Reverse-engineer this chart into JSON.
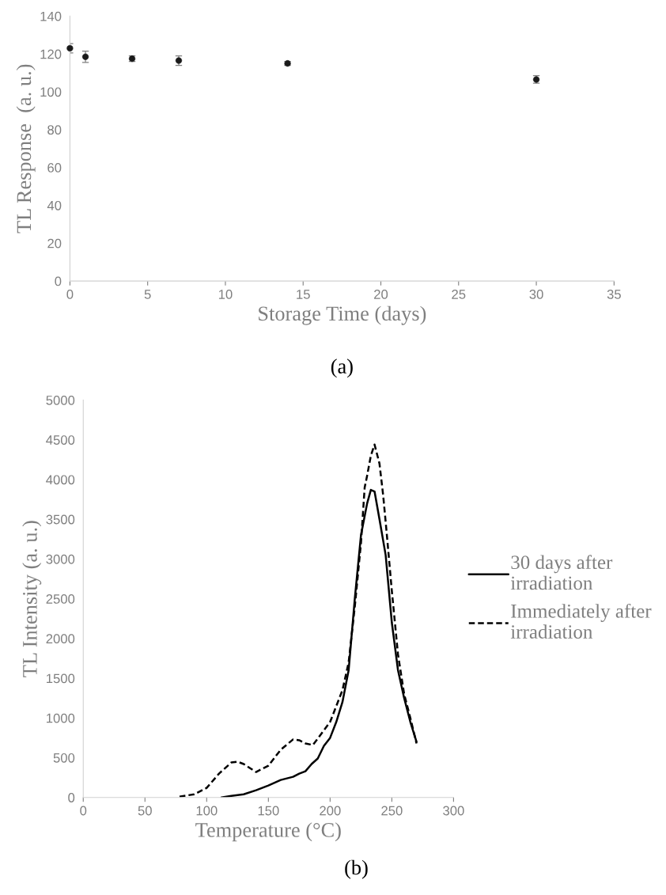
{
  "chart_data": [
    {
      "type": "scatter",
      "xlabel": "Storage Time (days)",
      "ylabel": "TL Response  (a. u.)",
      "annotations": [
        "(a)"
      ],
      "x": [
        0,
        1,
        4,
        7,
        14,
        30
      ],
      "series": [
        {
          "color": "#1a1a1a",
          "values": [
            123,
            118.5,
            117.5,
            116.5,
            115,
            106.5
          ],
          "errors": [
            2.5,
            3,
            1.5,
            2.5,
            1,
            2
          ]
        }
      ],
      "marker": "circle",
      "xlim": [
        0,
        35
      ],
      "xticks": [
        0,
        5,
        10,
        15,
        20,
        25,
        30,
        35
      ],
      "ylim": [
        0,
        140
      ],
      "yticks": [
        0,
        20,
        40,
        60,
        80,
        100,
        120,
        140
      ],
      "grid": false
    },
    {
      "type": "line",
      "xlabel": "Temperature (°C)",
      "ylabel": "TL Intensity (a. u.)",
      "annotations": [
        "(b)"
      ],
      "series": [
        {
          "name": "30 days after irradiation",
          "color": "#000000",
          "line_style": "solid",
          "x": [
            112,
            120,
            130,
            140,
            150,
            160,
            170,
            175,
            180,
            185,
            190,
            195,
            200,
            205,
            210,
            215,
            220,
            225,
            230,
            233,
            236,
            240,
            245,
            250,
            255,
            260,
            265,
            270
          ],
          "values": [
            0,
            20,
            40,
            90,
            150,
            220,
            260,
            300,
            330,
            420,
            490,
            650,
            750,
            950,
            1200,
            1600,
            2500,
            3300,
            3700,
            3870,
            3850,
            3500,
            3050,
            2200,
            1600,
            1250,
            950,
            700
          ]
        },
        {
          "name": "Immediately after irradiation",
          "color": "#000000",
          "line_style": "dashed",
          "x": [
            78,
            90,
            100,
            110,
            120,
            125,
            130,
            140,
            150,
            160,
            170,
            175,
            180,
            186,
            190,
            200,
            210,
            215,
            220,
            225,
            228,
            230,
            233,
            236,
            240,
            243,
            246,
            250,
            255,
            260,
            265,
            270
          ],
          "values": [
            10,
            40,
            120,
            300,
            440,
            450,
            420,
            320,
            400,
            600,
            730,
            720,
            680,
            660,
            740,
            950,
            1350,
            1700,
            2400,
            3200,
            3900,
            4050,
            4300,
            4440,
            4200,
            3800,
            3300,
            2600,
            1800,
            1300,
            1000,
            680
          ]
        }
      ],
      "xlim": [
        0,
        300
      ],
      "xticks": [
        0,
        50,
        100,
        150,
        200,
        250,
        300
      ],
      "ylim": [
        0,
        5000
      ],
      "yticks": [
        0,
        500,
        1000,
        1500,
        2000,
        2500,
        3000,
        3500,
        4000,
        4500,
        5000
      ],
      "grid": false,
      "legend": "right"
    }
  ]
}
